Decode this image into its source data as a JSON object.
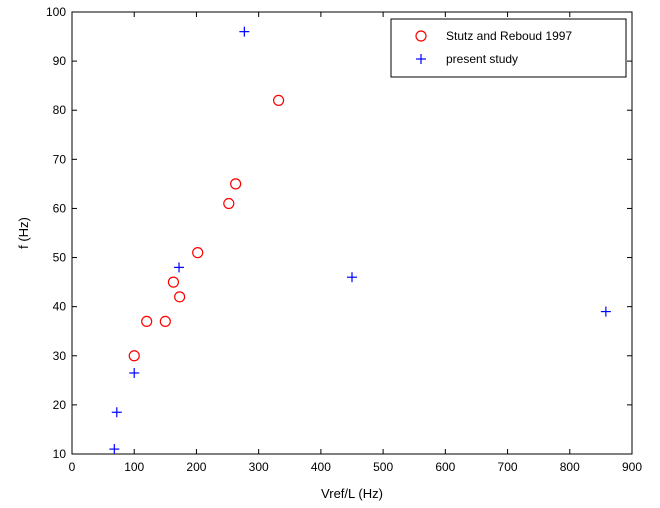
{
  "chart_data": {
    "type": "scatter",
    "xlabel": "Vref/L (Hz)",
    "ylabel": "f (Hz)",
    "xlim": [
      0,
      900
    ],
    "ylim": [
      10,
      100
    ],
    "xticks": [
      0,
      100,
      200,
      300,
      400,
      500,
      600,
      700,
      800,
      900
    ],
    "yticks": [
      10,
      20,
      30,
      40,
      50,
      60,
      70,
      80,
      90,
      100
    ],
    "grid": false,
    "legend_position": "top-right",
    "series": [
      {
        "name": "Stutz and Reboud 1997",
        "marker": "circle",
        "color": "#ff0000",
        "points": [
          [
            100,
            30
          ],
          [
            120,
            37
          ],
          [
            150,
            37
          ],
          [
            163,
            45
          ],
          [
            173,
            42
          ],
          [
            202,
            51
          ],
          [
            252,
            61
          ],
          [
            263,
            65
          ],
          [
            332,
            82
          ]
        ]
      },
      {
        "name": "present study",
        "marker": "plus",
        "color": "#0000ff",
        "points": [
          [
            68,
            11
          ],
          [
            72,
            18.5
          ],
          [
            100,
            26.5
          ],
          [
            172,
            48
          ],
          [
            277,
            96
          ],
          [
            450,
            46
          ],
          [
            858,
            39
          ]
        ]
      }
    ]
  }
}
